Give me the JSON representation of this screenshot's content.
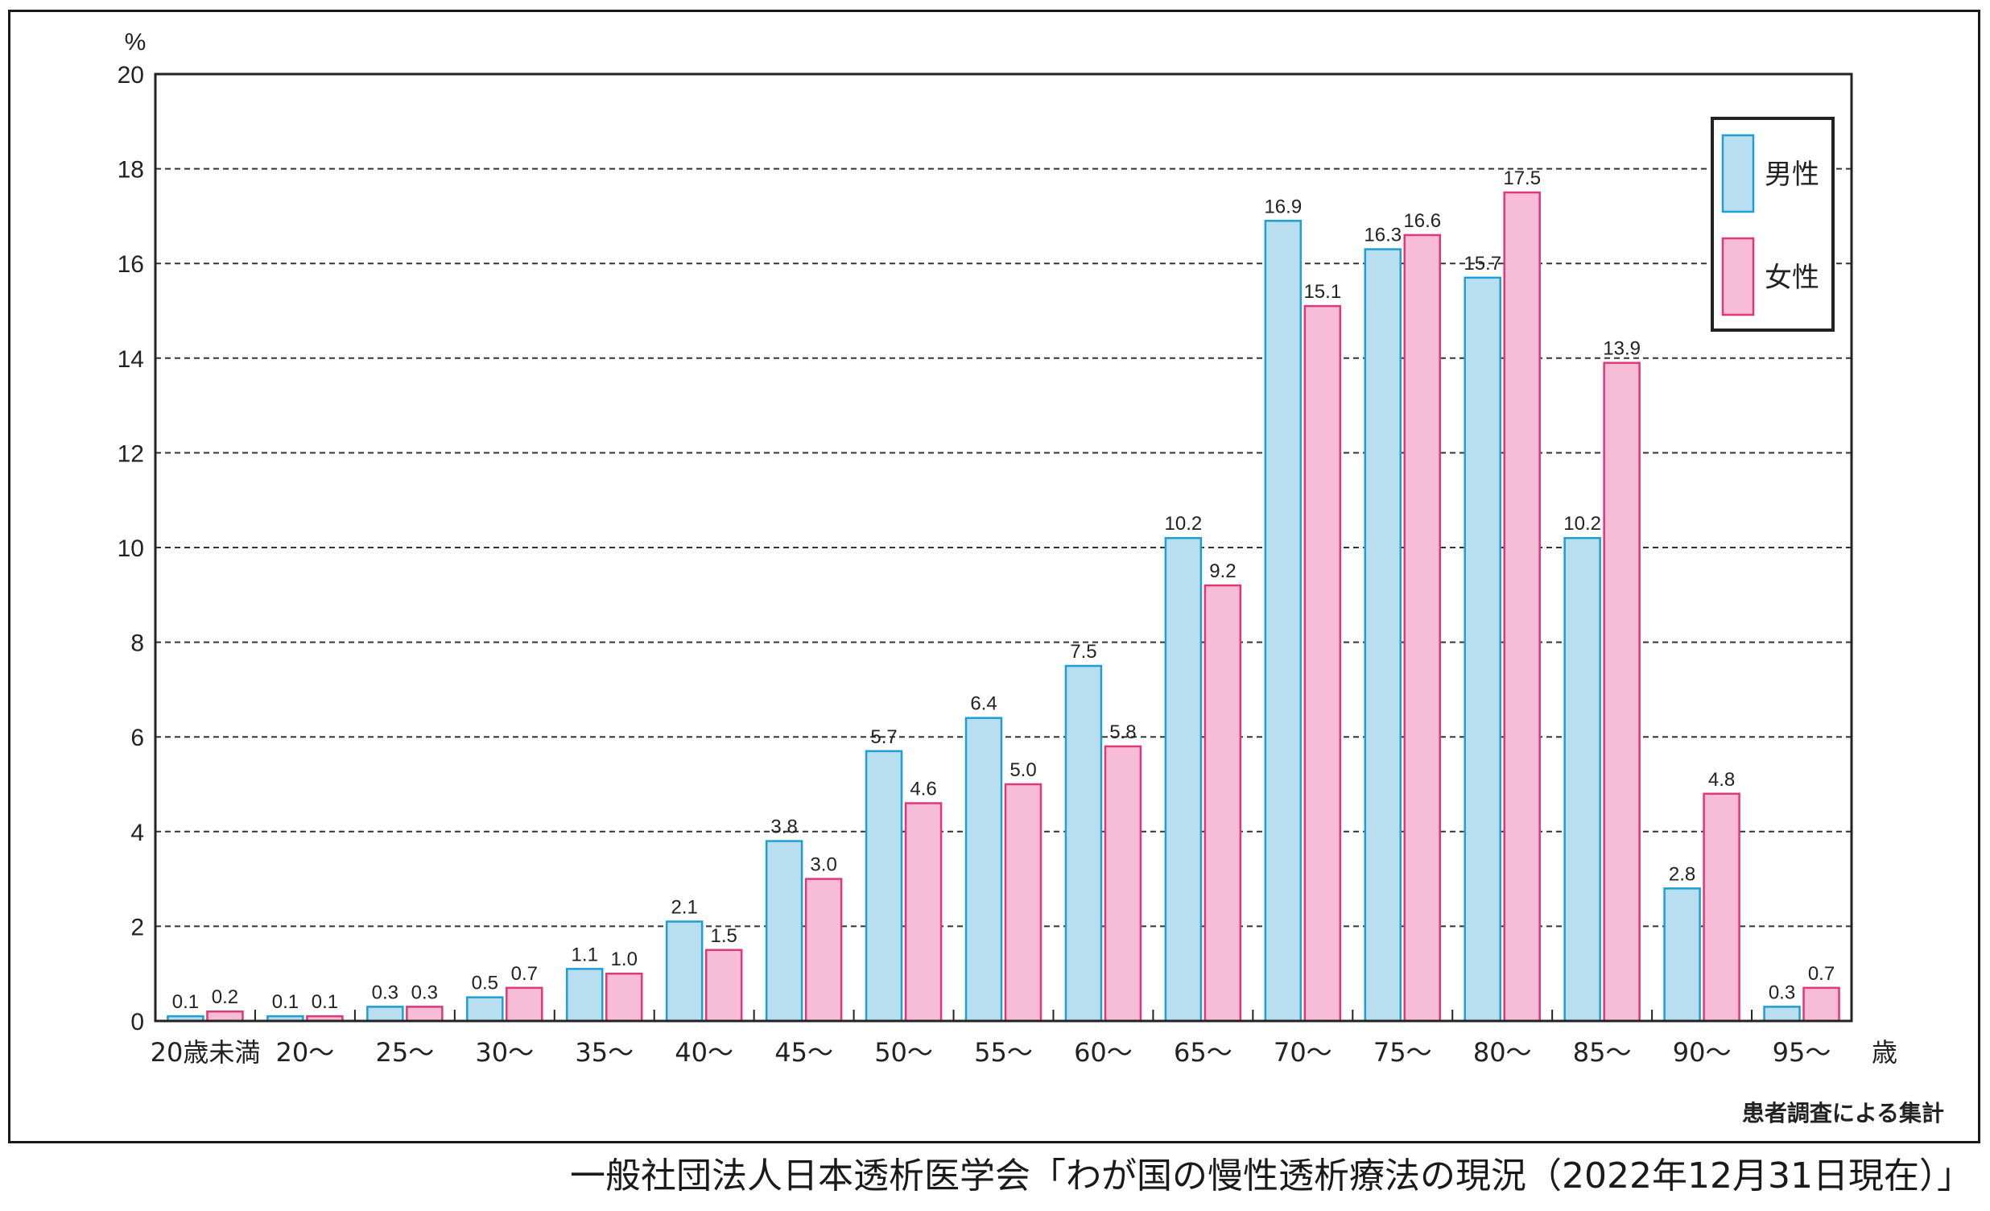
{
  "chart_data": {
    "type": "bar",
    "y_unit": "%",
    "x_unit": "歳",
    "ylim": [
      0,
      20
    ],
    "yticks": [
      0,
      2,
      4,
      6,
      8,
      10,
      12,
      14,
      16,
      18,
      20
    ],
    "grid": true,
    "legend_position": "top-right",
    "categories": [
      "20歳未満",
      "20〜",
      "25〜",
      "30〜",
      "35〜",
      "40〜",
      "45〜",
      "50〜",
      "55〜",
      "60〜",
      "65〜",
      "70〜",
      "75〜",
      "80〜",
      "85〜",
      "90〜",
      "95〜"
    ],
    "series": [
      {
        "name": "男性",
        "color": "#b8def0",
        "stroke": "#1e9fd4",
        "values": [
          0.1,
          0.1,
          0.3,
          0.5,
          1.1,
          2.1,
          3.8,
          5.7,
          6.4,
          7.5,
          10.2,
          16.9,
          16.3,
          15.7,
          10.2,
          2.8,
          0.3
        ],
        "labels": [
          "0.1",
          "0.1",
          "0.3",
          "0.5",
          "1.1",
          "2.1",
          "3.8",
          "5.7",
          "6.4",
          "7.5",
          "10.2",
          "16.9",
          "16.3",
          "15.7",
          "10.2",
          "2.8",
          "0.3"
        ]
      },
      {
        "name": "女性",
        "color": "#f7bdd6",
        "stroke": "#e0367a",
        "values": [
          0.2,
          0.1,
          0.3,
          0.7,
          1.0,
          1.5,
          3.0,
          4.6,
          5.0,
          5.8,
          9.2,
          15.1,
          16.6,
          17.5,
          13.9,
          4.8,
          0.7
        ],
        "labels": [
          "0.2",
          "0.1",
          "0.3",
          "0.7",
          "1.0",
          "1.5",
          "3.0",
          "4.6",
          "5.0",
          "5.8",
          "9.2",
          "15.1",
          "16.6",
          "17.5",
          "13.9",
          "4.8",
          "0.7"
        ]
      }
    ],
    "annotation": "患者調査による集計"
  },
  "source": "一般社団法人日本透析医学会「わが国の慢性透析療法の現況（2022年12月31日現在）」"
}
